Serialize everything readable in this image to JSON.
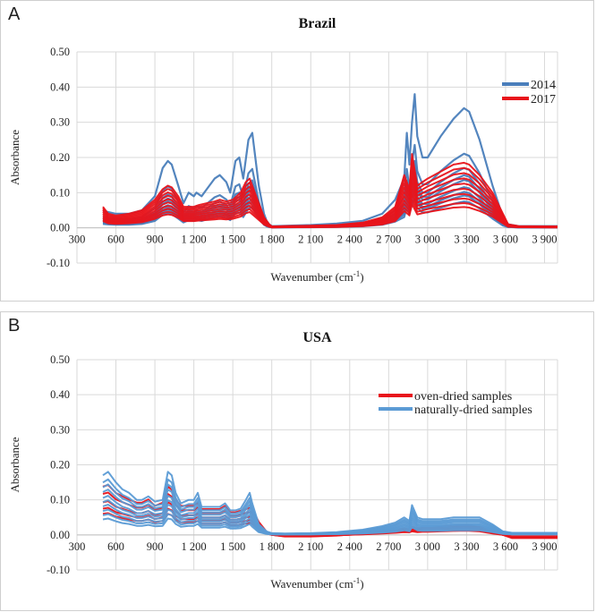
{
  "chart_data": [
    {
      "panel_label": "A",
      "type": "line",
      "title": "Brazil",
      "xlabel": "Wavenumber (cm-1)",
      "ylabel": "Absorbance",
      "xlim": [
        300,
        4000
      ],
      "ylim": [
        -0.1,
        0.5
      ],
      "x_ticks": [
        "300",
        "600",
        "900",
        "1 200",
        "1 500",
        "1 800",
        "2 100",
        "2 400",
        "2 700",
        "3 000",
        "3 300",
        "3 600",
        "3 900"
      ],
      "y_ticks": [
        "0.50",
        "0.40",
        "0.30",
        "0.20",
        "0.10",
        "0.00",
        "-0.10"
      ],
      "legend": [
        {
          "name": "2014",
          "color": "#4a7ebb"
        },
        {
          "name": "2017",
          "color": "#e8141b"
        }
      ],
      "series_families": [
        {
          "name": "2014",
          "color": "#4a7ebb",
          "x": [
            500,
            540,
            600,
            700,
            800,
            900,
            960,
            1000,
            1030,
            1080,
            1120,
            1160,
            1200,
            1220,
            1260,
            1300,
            1360,
            1400,
            1450,
            1480,
            1520,
            1550,
            1580,
            1620,
            1650,
            1700,
            1740,
            1760,
            1780,
            1800,
            1900,
            2100,
            2300,
            2500,
            2650,
            2750,
            2820,
            2840,
            2860,
            2880,
            2900,
            2920,
            2960,
            3000,
            3100,
            3200,
            3280,
            3320,
            3400,
            3500,
            3580,
            3620,
            3700,
            3800,
            4000
          ],
          "envelope": [
            0.05,
            0.045,
            0.04,
            0.04,
            0.05,
            0.09,
            0.17,
            0.19,
            0.18,
            0.12,
            0.07,
            0.1,
            0.09,
            0.1,
            0.09,
            0.11,
            0.14,
            0.15,
            0.13,
            0.1,
            0.19,
            0.2,
            0.14,
            0.25,
            0.27,
            0.12,
            0.04,
            0.02,
            0.01,
            0.005,
            0.006,
            0.008,
            0.012,
            0.02,
            0.04,
            0.08,
            0.14,
            0.27,
            0.18,
            0.3,
            0.38,
            0.26,
            0.2,
            0.2,
            0.26,
            0.31,
            0.34,
            0.33,
            0.25,
            0.12,
            0.03,
            0.01,
            0.005,
            0.005,
            0.005
          ],
          "scales": [
            1.0,
            0.62,
            0.5,
            0.44,
            0.4,
            0.34,
            0.3,
            0.27,
            0.22
          ]
        },
        {
          "name": "2017",
          "color": "#e8141b",
          "x": [
            500,
            540,
            600,
            700,
            800,
            900,
            960,
            1000,
            1030,
            1080,
            1120,
            1160,
            1200,
            1240,
            1300,
            1360,
            1400,
            1450,
            1500,
            1560,
            1600,
            1630,
            1680,
            1740,
            1780,
            1800,
            1900,
            2100,
            2300,
            2500,
            2650,
            2750,
            2820,
            2860,
            2880,
            2920,
            2960,
            3000,
            3100,
            3200,
            3280,
            3320,
            3400,
            3500,
            3580,
            3620,
            3700,
            4000
          ],
          "envelope": [
            0.06,
            0.04,
            0.035,
            0.04,
            0.05,
            0.08,
            0.11,
            0.12,
            0.115,
            0.09,
            0.06,
            0.06,
            0.06,
            0.065,
            0.07,
            0.075,
            0.08,
            0.075,
            0.08,
            0.1,
            0.13,
            0.14,
            0.09,
            0.03,
            0.01,
            0.004,
            0.005,
            0.006,
            0.008,
            0.015,
            0.03,
            0.06,
            0.15,
            0.11,
            0.21,
            0.12,
            0.13,
            0.14,
            0.16,
            0.18,
            0.185,
            0.18,
            0.15,
            0.1,
            0.04,
            0.01,
            0.005,
            0.004
          ],
          "scales": [
            1.0,
            0.92,
            0.84,
            0.76,
            0.68,
            0.6,
            0.52,
            0.45,
            0.38,
            0.32
          ]
        }
      ]
    },
    {
      "panel_label": "B",
      "type": "line",
      "title": "USA",
      "xlabel": "Wavenumber (cm-1)",
      "ylabel": "Absorbance",
      "xlim": [
        300,
        4000
      ],
      "ylim": [
        -0.1,
        0.5
      ],
      "x_ticks": [
        "300",
        "600",
        "900",
        "1 200",
        "1 500",
        "1 800",
        "2 100",
        "2 400",
        "2 700",
        "3 000",
        "3 300",
        "3 600",
        "3 900"
      ],
      "y_ticks": [
        "0.50",
        "0.40",
        "0.30",
        "0.20",
        "0.10",
        "0.00",
        "-0.10"
      ],
      "legend": [
        {
          "name": "oven-dried samples",
          "color": "#e8141b"
        },
        {
          "name": "naturally-dried samples",
          "color": "#5b9bd5"
        }
      ],
      "series_families": [
        {
          "name": "oven-dried samples",
          "color": "#e8141b",
          "x": [
            500,
            540,
            600,
            650,
            700,
            760,
            800,
            850,
            900,
            960,
            1000,
            1030,
            1060,
            1100,
            1160,
            1200,
            1230,
            1260,
            1300,
            1360,
            1400,
            1440,
            1480,
            1520,
            1560,
            1600,
            1640,
            1700,
            1760,
            1800,
            1900,
            2100,
            2300,
            2500,
            2650,
            2750,
            2820,
            2860,
            2880,
            2920,
            2960,
            3000,
            3100,
            3200,
            3300,
            3400,
            3500,
            3580,
            3650,
            3800,
            4000
          ],
          "envelope": [
            0.15,
            0.155,
            0.13,
            0.12,
            0.11,
            0.1,
            0.1,
            0.11,
            0.09,
            0.1,
            0.15,
            0.14,
            0.11,
            0.09,
            0.09,
            0.09,
            0.1,
            0.08,
            0.08,
            0.08,
            0.08,
            0.09,
            0.07,
            0.07,
            0.075,
            0.08,
            0.085,
            0.04,
            0.01,
            0.0,
            -0.005,
            -0.005,
            -0.002,
            0.004,
            0.01,
            0.015,
            0.02,
            0.018,
            0.025,
            0.02,
            0.022,
            0.022,
            0.025,
            0.028,
            0.03,
            0.025,
            0.01,
            0.0,
            -0.01,
            -0.01,
            -0.01
          ],
          "scales": [
            0.92,
            0.78,
            0.62,
            0.5,
            0.4
          ]
        },
        {
          "name": "naturally-dried samples",
          "color": "#5b9bd5",
          "x": [
            500,
            540,
            600,
            650,
            700,
            760,
            800,
            850,
            900,
            960,
            1000,
            1030,
            1060,
            1100,
            1160,
            1200,
            1230,
            1260,
            1300,
            1360,
            1400,
            1440,
            1480,
            1520,
            1560,
            1600,
            1630,
            1650,
            1700,
            1760,
            1800,
            1900,
            2100,
            2300,
            2500,
            2650,
            2750,
            2820,
            2860,
            2880,
            2920,
            2960,
            3000,
            3100,
            3200,
            3300,
            3400,
            3500,
            3580,
            3650,
            3800,
            4000
          ],
          "envelope": [
            0.17,
            0.18,
            0.15,
            0.13,
            0.12,
            0.1,
            0.1,
            0.11,
            0.095,
            0.1,
            0.18,
            0.17,
            0.12,
            0.09,
            0.1,
            0.1,
            0.12,
            0.08,
            0.08,
            0.08,
            0.08,
            0.09,
            0.07,
            0.07,
            0.075,
            0.1,
            0.12,
            0.09,
            0.03,
            0.01,
            0.005,
            0.004,
            0.005,
            0.008,
            0.015,
            0.025,
            0.035,
            0.05,
            0.04,
            0.085,
            0.05,
            0.045,
            0.045,
            0.045,
            0.05,
            0.05,
            0.05,
            0.03,
            0.01,
            0.006,
            0.006,
            0.006
          ],
          "scales": [
            1.0,
            0.88,
            0.8,
            0.72,
            0.62,
            0.55,
            0.48,
            0.4,
            0.33,
            0.26
          ]
        }
      ]
    }
  ]
}
